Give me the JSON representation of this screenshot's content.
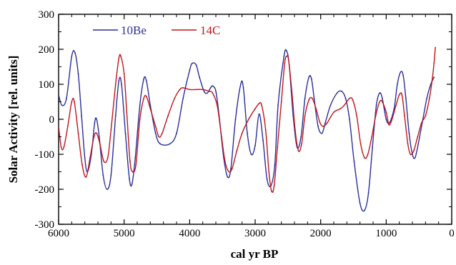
{
  "chart_data": {
    "type": "line",
    "title": "",
    "xlabel": "cal yr BP",
    "ylabel": "Solar Activity [rel. units]",
    "xlim": [
      6000,
      0
    ],
    "ylim": [
      -300,
      300
    ],
    "x_reversed": true,
    "x_ticks": [
      6000,
      5000,
      4000,
      3000,
      2000,
      1000,
      0
    ],
    "y_ticks": [
      -300,
      -200,
      -100,
      0,
      100,
      200,
      300
    ],
    "legend": "top-left",
    "grid": false,
    "series": [
      {
        "name": "10Be",
        "color": "#2b2f9a",
        "points": [
          [
            6000,
            70
          ],
          [
            5950,
            40
          ],
          [
            5880,
            60
          ],
          [
            5800,
            180
          ],
          [
            5750,
            190
          ],
          [
            5700,
            130
          ],
          [
            5650,
            10
          ],
          [
            5600,
            -110
          ],
          [
            5560,
            -150
          ],
          [
            5500,
            -100
          ],
          [
            5450,
            -10
          ],
          [
            5420,
            0
          ],
          [
            5380,
            -50
          ],
          [
            5320,
            -160
          ],
          [
            5260,
            -200
          ],
          [
            5200,
            -160
          ],
          [
            5130,
            10
          ],
          [
            5080,
            110
          ],
          [
            5040,
            100
          ],
          [
            4980,
            -40
          ],
          [
            4920,
            -170
          ],
          [
            4880,
            -185
          ],
          [
            4830,
            -110
          ],
          [
            4760,
            40
          ],
          [
            4700,
            115
          ],
          [
            4660,
            110
          ],
          [
            4600,
            40
          ],
          [
            4520,
            -40
          ],
          [
            4450,
            -70
          ],
          [
            4300,
            -70
          ],
          [
            4200,
            -40
          ],
          [
            4100,
            60
          ],
          [
            4000,
            140
          ],
          [
            3960,
            160
          ],
          [
            3900,
            155
          ],
          [
            3850,
            120
          ],
          [
            3780,
            80
          ],
          [
            3730,
            75
          ],
          [
            3680,
            90
          ],
          [
            3650,
            95
          ],
          [
            3600,
            80
          ],
          [
            3550,
            10
          ],
          [
            3480,
            -110
          ],
          [
            3420,
            -165
          ],
          [
            3370,
            -140
          ],
          [
            3300,
            0
          ],
          [
            3220,
            100
          ],
          [
            3180,
            90
          ],
          [
            3120,
            -40
          ],
          [
            3060,
            -100
          ],
          [
            3000,
            -75
          ],
          [
            2940,
            15
          ],
          [
            2880,
            -60
          ],
          [
            2820,
            -170
          ],
          [
            2760,
            -190
          ],
          [
            2700,
            -130
          ],
          [
            2650,
            40
          ],
          [
            2560,
            180
          ],
          [
            2520,
            195
          ],
          [
            2480,
            155
          ],
          [
            2420,
            10
          ],
          [
            2360,
            -80
          ],
          [
            2300,
            -50
          ],
          [
            2240,
            60
          ],
          [
            2180,
            120
          ],
          [
            2140,
            115
          ],
          [
            2100,
            60
          ],
          [
            2040,
            -20
          ],
          [
            1980,
            -40
          ],
          [
            1930,
            -10
          ],
          [
            1850,
            40
          ],
          [
            1750,
            75
          ],
          [
            1680,
            80
          ],
          [
            1620,
            60
          ],
          [
            1560,
            0
          ],
          [
            1490,
            -120
          ],
          [
            1400,
            -240
          ],
          [
            1330,
            -260
          ],
          [
            1270,
            -210
          ],
          [
            1210,
            -80
          ],
          [
            1150,
            40
          ],
          [
            1100,
            75
          ],
          [
            1060,
            60
          ],
          [
            1000,
            0
          ],
          [
            950,
            -10
          ],
          [
            880,
            30
          ],
          [
            830,
            100
          ],
          [
            780,
            135
          ],
          [
            740,
            125
          ],
          [
            700,
            60
          ],
          [
            650,
            -40
          ],
          [
            600,
            -100
          ],
          [
            560,
            -110
          ],
          [
            510,
            -70
          ],
          [
            440,
            0
          ],
          [
            380,
            60
          ],
          [
            320,
            100
          ],
          [
            270,
            120
          ]
        ]
      },
      {
        "name": "14C",
        "color": "#c0161c",
        "points": [
          [
            6000,
            -20
          ],
          [
            5960,
            -80
          ],
          [
            5920,
            -80
          ],
          [
            5860,
            -20
          ],
          [
            5800,
            50
          ],
          [
            5760,
            50
          ],
          [
            5700,
            -40
          ],
          [
            5640,
            -130
          ],
          [
            5580,
            -165
          ],
          [
            5520,
            -110
          ],
          [
            5460,
            -50
          ],
          [
            5420,
            -40
          ],
          [
            5370,
            -70
          ],
          [
            5310,
            -120
          ],
          [
            5250,
            -110
          ],
          [
            5200,
            -30
          ],
          [
            5130,
            100
          ],
          [
            5080,
            175
          ],
          [
            5050,
            180
          ],
          [
            5000,
            130
          ],
          [
            4960,
            20
          ],
          [
            4910,
            -120
          ],
          [
            4870,
            -150
          ],
          [
            4820,
            -130
          ],
          [
            4760,
            0
          ],
          [
            4700,
            60
          ],
          [
            4660,
            65
          ],
          [
            4600,
            30
          ],
          [
            4520,
            -20
          ],
          [
            4470,
            -50
          ],
          [
            4420,
            -40
          ],
          [
            4330,
            10
          ],
          [
            4230,
            60
          ],
          [
            4150,
            85
          ],
          [
            4100,
            90
          ],
          [
            4000,
            85
          ],
          [
            3900,
            85
          ],
          [
            3800,
            85
          ],
          [
            3700,
            80
          ],
          [
            3650,
            75
          ],
          [
            3580,
            40
          ],
          [
            3520,
            -40
          ],
          [
            3460,
            -120
          ],
          [
            3400,
            -150
          ],
          [
            3350,
            -140
          ],
          [
            3280,
            -90
          ],
          [
            3200,
            -40
          ],
          [
            3100,
            0
          ],
          [
            3000,
            30
          ],
          [
            2940,
            45
          ],
          [
            2900,
            40
          ],
          [
            2840,
            -30
          ],
          [
            2790,
            -150
          ],
          [
            2750,
            -205
          ],
          [
            2710,
            -190
          ],
          [
            2660,
            -80
          ],
          [
            2600,
            50
          ],
          [
            2550,
            160
          ],
          [
            2520,
            180
          ],
          [
            2490,
            170
          ],
          [
            2440,
            80
          ],
          [
            2390,
            -30
          ],
          [
            2340,
            -90
          ],
          [
            2290,
            -70
          ],
          [
            2240,
            10
          ],
          [
            2180,
            55
          ],
          [
            2130,
            60
          ],
          [
            2070,
            30
          ],
          [
            2010,
            -10
          ],
          [
            1960,
            -20
          ],
          [
            1900,
            -10
          ],
          [
            1800,
            20
          ],
          [
            1700,
            30
          ],
          [
            1640,
            40
          ],
          [
            1560,
            60
          ],
          [
            1510,
            55
          ],
          [
            1450,
            10
          ],
          [
            1390,
            -70
          ],
          [
            1330,
            -110
          ],
          [
            1280,
            -100
          ],
          [
            1220,
            -50
          ],
          [
            1160,
            10
          ],
          [
            1100,
            50
          ],
          [
            1060,
            50
          ],
          [
            1000,
            20
          ],
          [
            960,
            -15
          ],
          [
            920,
            -5
          ],
          [
            850,
            40
          ],
          [
            800,
            70
          ],
          [
            760,
            70
          ],
          [
            720,
            10
          ],
          [
            670,
            -70
          ],
          [
            630,
            -100
          ],
          [
            580,
            -90
          ],
          [
            520,
            -50
          ],
          [
            460,
            -10
          ],
          [
            400,
            10
          ],
          [
            340,
            60
          ],
          [
            300,
            110
          ],
          [
            270,
            160
          ],
          [
            250,
            205
          ]
        ]
      }
    ]
  },
  "legend": {
    "items": [
      {
        "label": "10Be",
        "color": "#2b2f9a"
      },
      {
        "label": "14C",
        "color": "#c0161c"
      }
    ]
  },
  "axes": {
    "x_tick_labels": [
      "6000",
      "5000",
      "4000",
      "3000",
      "2000",
      "1000",
      "0"
    ],
    "y_tick_labels": [
      "-300",
      "-200",
      "-100",
      "0",
      "100",
      "200",
      "300"
    ]
  }
}
